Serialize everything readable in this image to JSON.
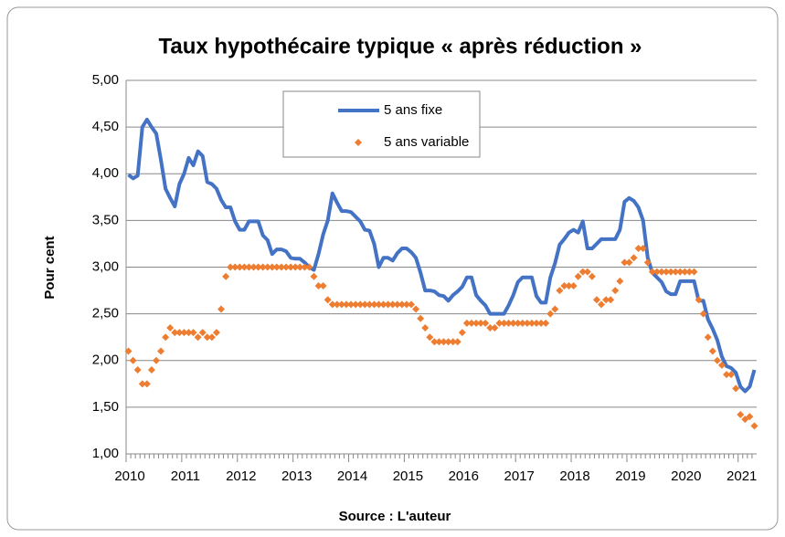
{
  "chart_data": {
    "type": "line",
    "title": "Taux hypothécaire typique « après réduction »",
    "ylabel": "Pour cent",
    "xlabel": "Source : L'auteur",
    "categories": [
      "2010",
      null,
      null,
      null,
      null,
      null,
      null,
      null,
      null,
      null,
      null,
      null,
      "2011",
      null,
      null,
      null,
      null,
      null,
      null,
      null,
      null,
      null,
      null,
      null,
      "2012",
      null,
      null,
      null,
      null,
      null,
      null,
      null,
      null,
      null,
      null,
      null,
      "2013",
      null,
      null,
      null,
      null,
      null,
      null,
      null,
      null,
      null,
      null,
      null,
      "2014",
      null,
      null,
      null,
      null,
      null,
      null,
      null,
      null,
      null,
      null,
      null,
      "2015",
      null,
      null,
      null,
      null,
      null,
      null,
      null,
      null,
      null,
      null,
      null,
      "2016",
      null,
      null,
      null,
      null,
      null,
      null,
      null,
      null,
      null,
      null,
      null,
      "2017",
      null,
      null,
      null,
      null,
      null,
      null,
      null,
      null,
      null,
      null,
      null,
      "2018",
      null,
      null,
      null,
      null,
      null,
      null,
      null,
      null,
      null,
      null,
      null,
      "2019",
      null,
      null,
      null,
      null,
      null,
      null,
      null,
      null,
      null,
      null,
      null,
      "2020",
      null,
      null,
      null,
      null,
      null,
      null,
      null,
      null,
      null,
      null,
      null,
      "2021",
      null,
      null,
      null
    ],
    "series": [
      {
        "name": "5 ans fixe",
        "color": "#4472c4",
        "mode": "line",
        "values": [
          3.99,
          3.95,
          3.98,
          4.5,
          4.58,
          4.5,
          4.43,
          4.15,
          3.84,
          3.74,
          3.65,
          3.89,
          4.0,
          4.17,
          4.09,
          4.24,
          4.19,
          3.91,
          3.89,
          3.84,
          3.72,
          3.64,
          3.64,
          3.49,
          3.4,
          3.4,
          3.49,
          3.49,
          3.49,
          3.34,
          3.29,
          3.14,
          3.19,
          3.19,
          3.17,
          3.1,
          3.09,
          3.09,
          3.05,
          3.0,
          2.97,
          3.14,
          3.35,
          3.5,
          3.79,
          3.69,
          3.6,
          3.6,
          3.59,
          3.54,
          3.49,
          3.4,
          3.39,
          3.25,
          3.0,
          3.1,
          3.1,
          3.07,
          3.15,
          3.2,
          3.2,
          3.16,
          3.1,
          2.94,
          2.75,
          2.75,
          2.74,
          2.7,
          2.69,
          2.64,
          2.7,
          2.74,
          2.79,
          2.89,
          2.89,
          2.7,
          2.64,
          2.59,
          2.5,
          2.5,
          2.5,
          2.5,
          2.59,
          2.7,
          2.84,
          2.89,
          2.89,
          2.89,
          2.69,
          2.62,
          2.62,
          2.89,
          3.04,
          3.24,
          3.3,
          3.37,
          3.4,
          3.37,
          3.49,
          3.2,
          3.2,
          3.25,
          3.3,
          3.3,
          3.3,
          3.3,
          3.4,
          3.7,
          3.74,
          3.71,
          3.64,
          3.5,
          3.1,
          2.94,
          2.89,
          2.84,
          2.74,
          2.71,
          2.71,
          2.85,
          2.85,
          2.85,
          2.85,
          2.64,
          2.64,
          2.44,
          2.34,
          2.22,
          2.04,
          1.94,
          1.92,
          1.87,
          1.72,
          1.67,
          1.72,
          1.9
        ]
      },
      {
        "name": "5 ans variable",
        "color": "#ed7d31",
        "mode": "markers",
        "values": [
          2.1,
          2.0,
          1.9,
          1.75,
          1.75,
          1.9,
          2.0,
          2.1,
          2.25,
          2.35,
          2.3,
          2.3,
          2.3,
          2.3,
          2.3,
          2.25,
          2.3,
          2.25,
          2.25,
          2.3,
          2.55,
          2.9,
          3.0,
          3.0,
          3.0,
          3.0,
          3.0,
          3.0,
          3.0,
          3.0,
          3.0,
          3.0,
          3.0,
          3.0,
          3.0,
          3.0,
          3.0,
          3.0,
          3.0,
          3.0,
          2.9,
          2.8,
          2.8,
          2.65,
          2.6,
          2.6,
          2.6,
          2.6,
          2.6,
          2.6,
          2.6,
          2.6,
          2.6,
          2.6,
          2.6,
          2.6,
          2.6,
          2.6,
          2.6,
          2.6,
          2.6,
          2.6,
          2.55,
          2.45,
          2.35,
          2.25,
          2.2,
          2.2,
          2.2,
          2.2,
          2.2,
          2.2,
          2.3,
          2.4,
          2.4,
          2.4,
          2.4,
          2.4,
          2.35,
          2.35,
          2.4,
          2.4,
          2.4,
          2.4,
          2.4,
          2.4,
          2.4,
          2.4,
          2.4,
          2.4,
          2.4,
          2.5,
          2.55,
          2.75,
          2.8,
          2.8,
          2.8,
          2.9,
          2.95,
          2.95,
          2.9,
          2.65,
          2.6,
          2.65,
          2.65,
          2.75,
          2.85,
          3.05,
          3.05,
          3.1,
          3.2,
          3.2,
          3.05,
          2.95,
          2.95,
          2.95,
          2.95,
          2.95,
          2.95,
          2.95,
          2.95,
          2.95,
          2.95,
          2.65,
          2.5,
          2.25,
          2.1,
          2.0,
          1.95,
          1.85,
          1.85,
          1.7,
          1.42,
          1.37,
          1.4,
          1.3
        ]
      }
    ],
    "ylim": [
      1,
      5
    ],
    "yticks": [
      {
        "value": 1,
        "label": "1,00"
      },
      {
        "value": 1.5,
        "label": "1,50"
      },
      {
        "value": 2,
        "label": "2,00"
      },
      {
        "value": 2.5,
        "label": "2,50"
      },
      {
        "value": 3,
        "label": "3,00"
      },
      {
        "value": 3.5,
        "label": "3,50"
      },
      {
        "value": 4,
        "label": "4,00"
      },
      {
        "value": 4.5,
        "label": "4,50"
      },
      {
        "value": 5,
        "label": "5,00"
      }
    ],
    "grid": true,
    "legend": "top"
  }
}
